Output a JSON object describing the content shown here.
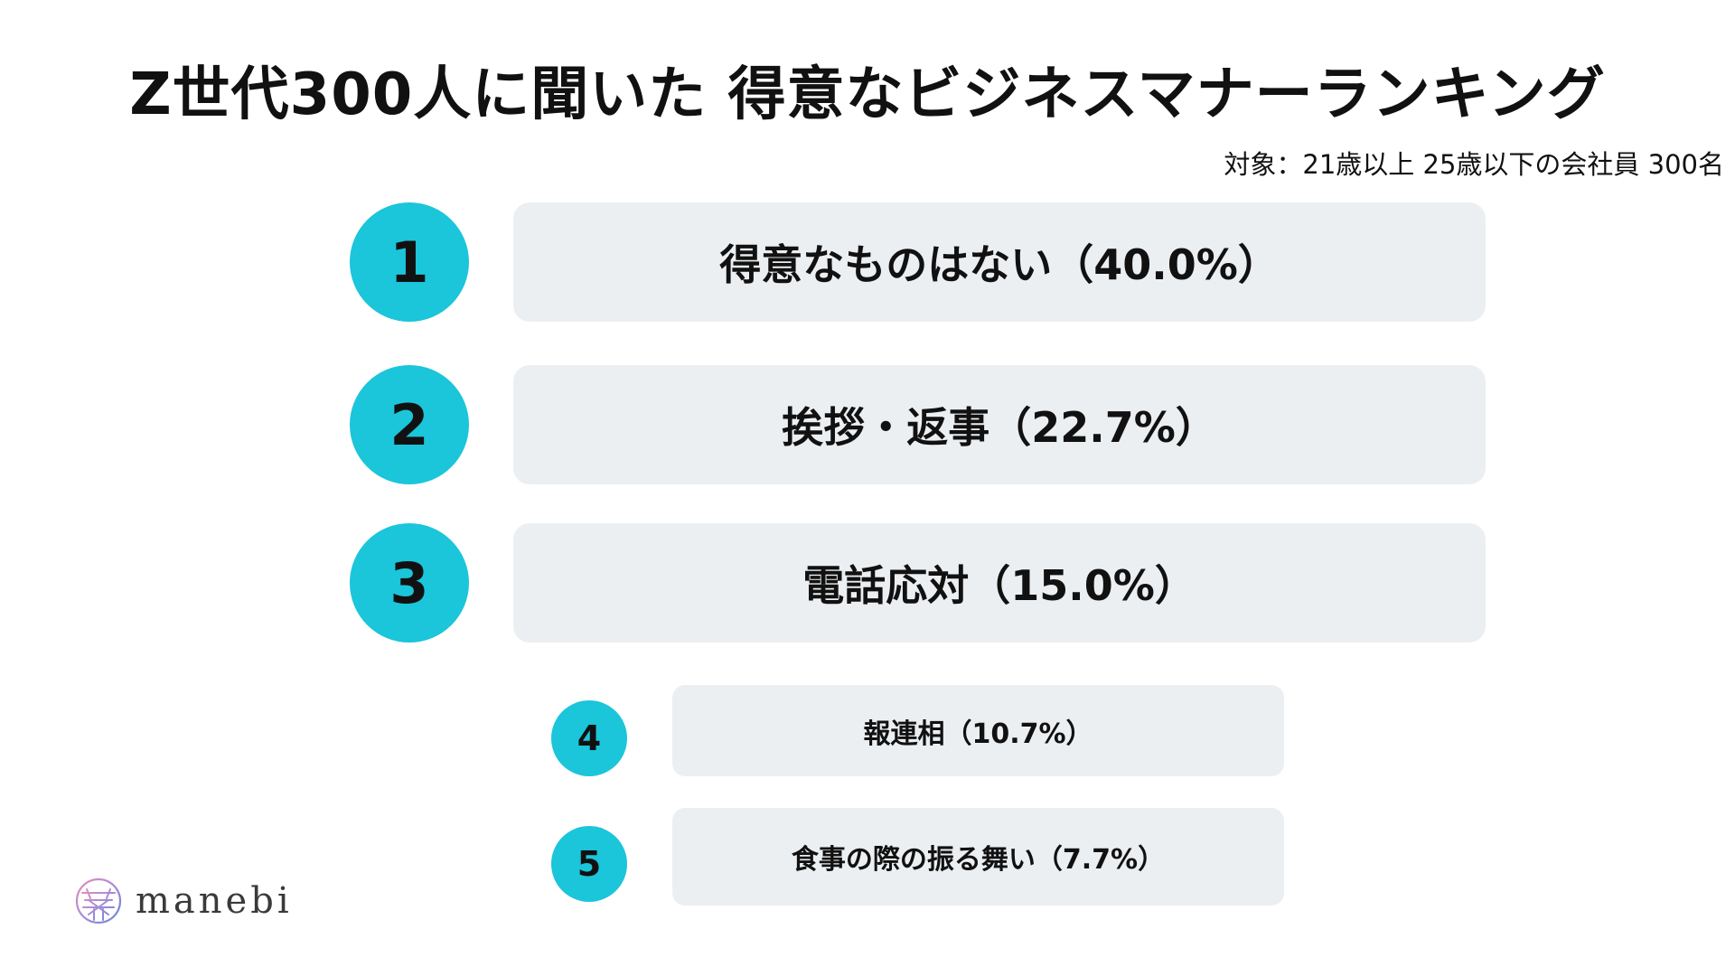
{
  "title": "Z世代300人に聞いた 得意なビジネスマナーランキング",
  "subtitle": "対象：21歳以上 25歳以下の会社員 300名",
  "accent_color": "#1bc5da",
  "bar_color": "#eceff2",
  "ranking": [
    {
      "rank": "1",
      "label": "得意なものはない（40.0%）"
    },
    {
      "rank": "2",
      "label": "挨拶・返事（22.7%）"
    },
    {
      "rank": "3",
      "label": "電話応対（15.0%）"
    },
    {
      "rank": "4",
      "label": "報連相（10.7%）"
    },
    {
      "rank": "5",
      "label": "食事の際の振る舞い（7.7%）"
    }
  ],
  "logo": {
    "text": "manebi",
    "icon": "manebi-logo-icon"
  }
}
